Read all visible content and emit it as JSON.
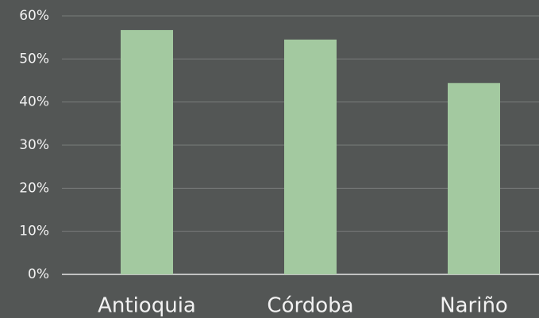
{
  "chart_data": {
    "type": "bar",
    "categories": [
      "Antioquia",
      "Córdoba",
      "Nariño"
    ],
    "values": [
      56.7,
      54.5,
      44.4
    ],
    "color": "#a3c9a0",
    "ylim": [
      0,
      60
    ],
    "yticks": [
      {
        "value": 0,
        "label": "0%"
      },
      {
        "value": 10,
        "label": "10%"
      },
      {
        "value": 20,
        "label": "20%"
      },
      {
        "value": 30,
        "label": "30%"
      },
      {
        "value": 40,
        "label": "40%"
      },
      {
        "value": 50,
        "label": "50%"
      },
      {
        "value": 60,
        "label": "60%"
      }
    ],
    "grid": true
  }
}
